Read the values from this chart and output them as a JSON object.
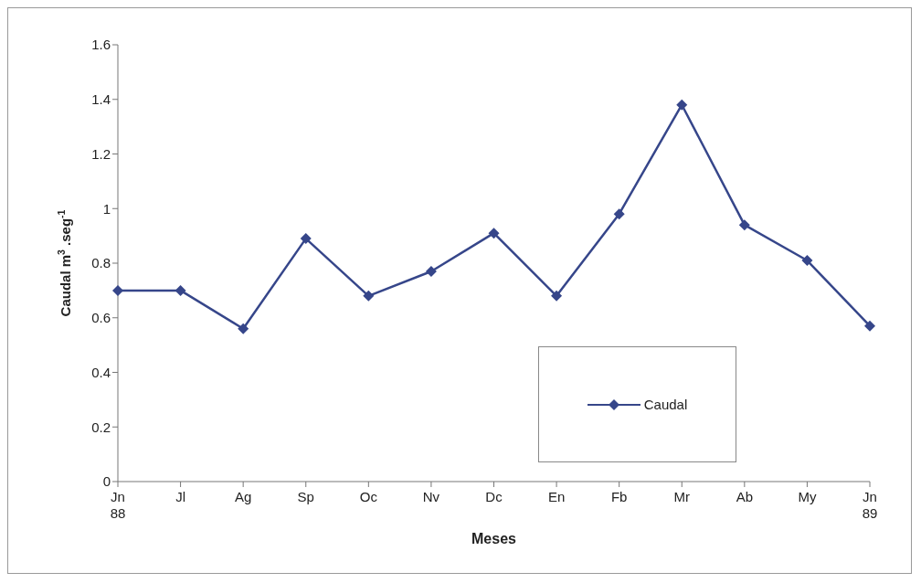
{
  "chart_data": {
    "type": "line",
    "xlabel": "Meses",
    "ylabel": "Caudal m$^{3}$ .seg$^{-1}$",
    "categories": [
      "Jn\n88",
      "Jl",
      "Ag",
      "Sp",
      "Oc",
      "Nv",
      "Dc",
      "En",
      "Fb",
      "Mr",
      "Ab",
      "My",
      "Jn\n89"
    ],
    "series": [
      {
        "name": "Caudal",
        "color": "#36468a",
        "values": [
          0.7,
          0.7,
          0.56,
          0.89,
          0.68,
          0.77,
          0.91,
          0.68,
          0.98,
          1.38,
          0.94,
          0.81,
          0.57
        ]
      }
    ],
    "ylim": [
      0,
      1.6
    ],
    "yticks": [
      0,
      0.2,
      0.4,
      0.6,
      0.8,
      1,
      1.2,
      1.4,
      1.6
    ],
    "grid": false,
    "legend": "bottom right",
    "marker": "diamond",
    "line_style": "solid"
  }
}
